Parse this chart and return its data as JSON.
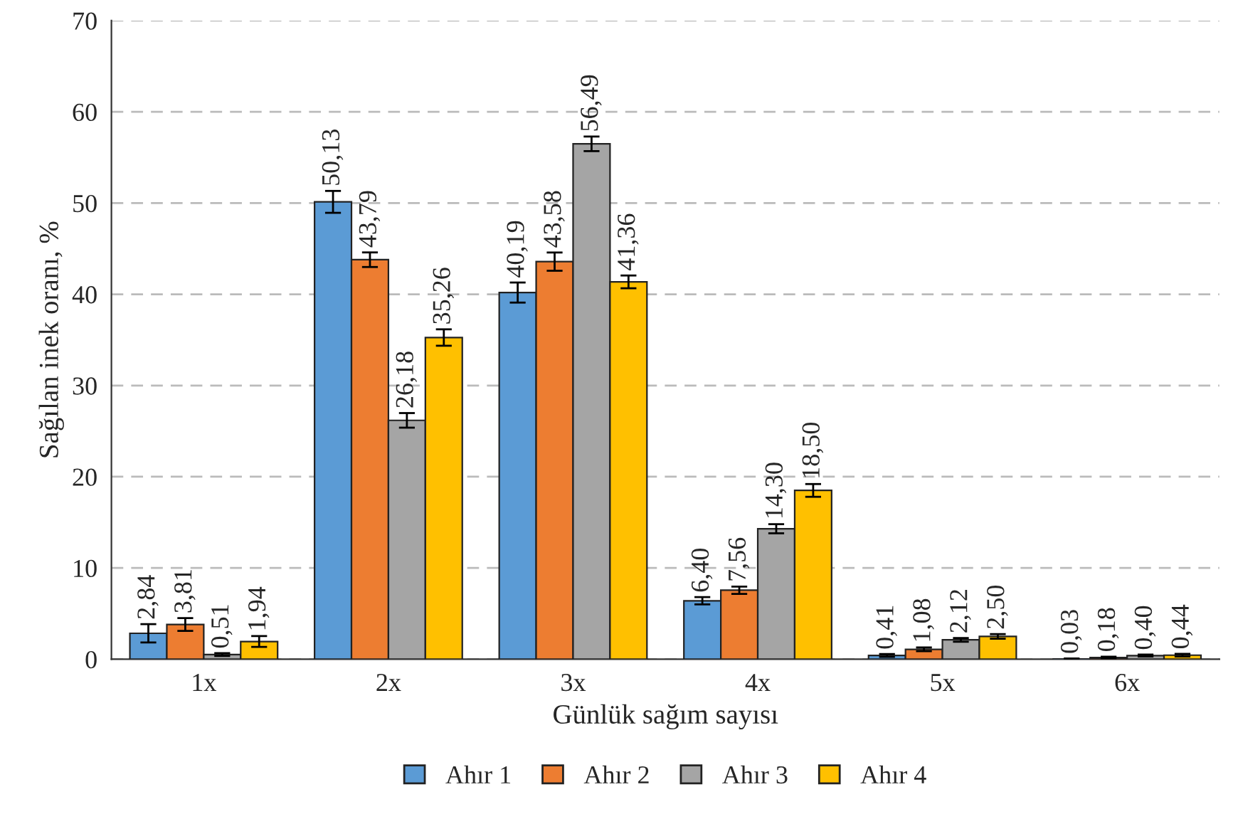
{
  "chart_data": {
    "type": "bar",
    "xlabel": "Günlük sağım sayısı",
    "ylabel": "Sağılan inek oranı, %",
    "categories": [
      "1x",
      "2x",
      "3x",
      "4x",
      "5x",
      "6x"
    ],
    "ylim": [
      0,
      70
    ],
    "yticks": [
      0,
      10,
      20,
      30,
      40,
      50,
      60,
      70
    ],
    "grid": "y",
    "legend": "bottom",
    "series": [
      {
        "name": "Ahır 1",
        "color": "#5b9bd5",
        "values": [
          2.84,
          50.13,
          40.19,
          6.4,
          0.41,
          0.03
        ],
        "errors": [
          1.0,
          1.2,
          1.1,
          0.4,
          0.15,
          0.05
        ],
        "value_labels": [
          "2,84",
          "50,13",
          "40,19",
          "6,40",
          "0,41",
          "0,03"
        ]
      },
      {
        "name": "Ahır 2",
        "color": "#ed7d31",
        "values": [
          3.81,
          43.79,
          43.58,
          7.56,
          1.08,
          0.18
        ],
        "errors": [
          0.7,
          0.8,
          1.0,
          0.4,
          0.2,
          0.1
        ],
        "value_labels": [
          "3,81",
          "43,79",
          "43,58",
          "7,56",
          "1,08",
          "0,18"
        ]
      },
      {
        "name": "Ahır 3",
        "color": "#a5a5a5",
        "values": [
          0.51,
          26.18,
          56.49,
          14.3,
          2.12,
          0.4
        ],
        "errors": [
          0.15,
          0.8,
          0.8,
          0.5,
          0.2,
          0.1
        ],
        "value_labels": [
          "0,51",
          "26,18",
          "56,49",
          "14,30",
          "2,12",
          "0,40"
        ]
      },
      {
        "name": "Ahır 4",
        "color": "#ffc000",
        "values": [
          1.94,
          35.26,
          41.36,
          18.5,
          2.5,
          0.44
        ],
        "errors": [
          0.6,
          0.9,
          0.7,
          0.7,
          0.25,
          0.15
        ],
        "value_labels": [
          "1,94",
          "35,26",
          "41,36",
          "18,50",
          "2,50",
          "0,44"
        ]
      }
    ]
  }
}
